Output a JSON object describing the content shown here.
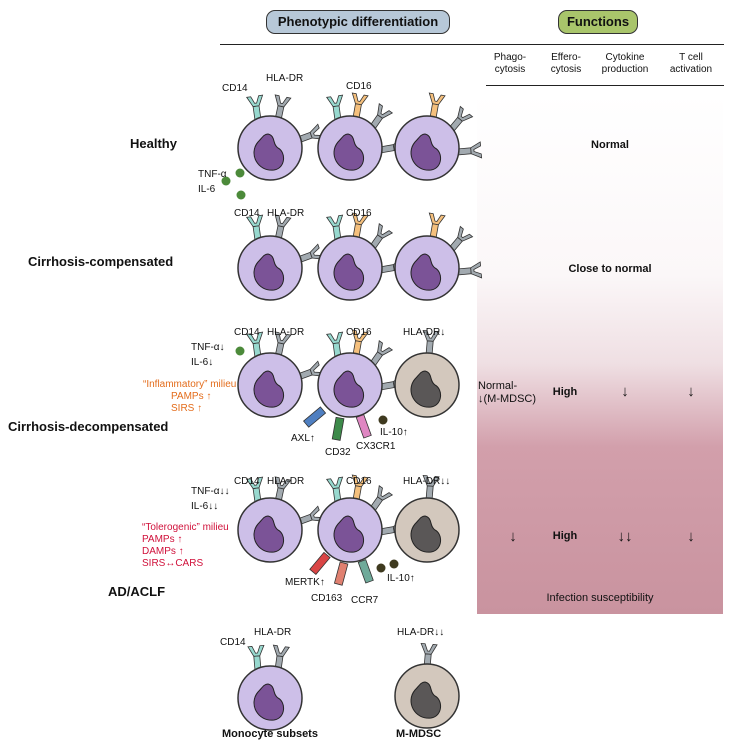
{
  "header": {
    "phenotypic_title": "Phenotypic differentiation",
    "functions_title": "Functions",
    "phenotypic_color": "#b7c8d8",
    "functions_color": "#a9c56b"
  },
  "columns": [
    {
      "line1": "Phago-",
      "line2": "cytosis"
    },
    {
      "line1": "Efferо-",
      "line2": "cytosis"
    },
    {
      "line1": "Cytokine",
      "line2": "production"
    },
    {
      "line1": "T cell",
      "line2": "activation"
    }
  ],
  "rows": {
    "healthy": {
      "label": "Healthy",
      "cd14": "CD14",
      "hladr": "HLA-DR",
      "cd16": "CD16",
      "tnf": "TNF-α",
      "il6": "IL-6",
      "function": "Normal"
    },
    "compensated": {
      "label": "Cirrhosis-compensated",
      "cd14": "CD14",
      "hladr": "HLA-DR",
      "cd16": "CD16",
      "function": "Close to normal"
    },
    "decompensated": {
      "label": "Cirrhosis-decompensated",
      "cd14": "CD14",
      "hladr": "HLA-DR",
      "cd16": "CD16",
      "hladr_down": "HLA-DR↓",
      "tnf": "TNF-α↓",
      "il6": "IL-6↓",
      "milieu1": "“Inflammatory” milieu",
      "milieu2": "PAMPs ↑",
      "milieu3": "SIRS ↑",
      "axl": "AXL↑",
      "cd32": "CD32",
      "cx3cr1": "CX3CR1",
      "il10": "IL-10↑",
      "phago1": "Normal-",
      "phago2": "↓(M-MDSC)",
      "effero": "High",
      "cytokine": "↓",
      "tcell": "↓"
    },
    "aclf": {
      "label": "AD/ACLF",
      "cd14": "CD14",
      "hladr": "HLA-DR",
      "cd16": "CD16",
      "hladr_down": "HLA-DR↓↓",
      "tnf": "TNF-α↓↓",
      "il6": "IL-6↓↓",
      "milieu1": "“Tolerogenic” milieu",
      "milieu2": "PAMPs ↑",
      "milieu3": "DAMPs ↑",
      "milieu4": "SIRS↔CARS",
      "mertk": "MERTK↑",
      "cd163": "CD163",
      "ccr7": "CCR7",
      "il10": "IL-10↑",
      "phago": "↓",
      "effero": "High",
      "cytokine": "↓↓",
      "tcell": "↓",
      "infection": "Infection susceptibility"
    }
  },
  "legend": {
    "cd14": "CD14",
    "hladr": "HLA-DR",
    "hladr_down": "HLA-DR↓↓",
    "monocyte": "Monocyte subsets",
    "mmdsc": "M-MDSC"
  },
  "colors": {
    "cell_fill": "#cdbfe8",
    "cell_stroke": "#333333",
    "nucleus": "#7b5397",
    "mdsc_fill": "#d3c8bd",
    "mdsc_nucleus": "#5a5757",
    "cd14_receptor": "#98d9cf",
    "hladr_receptor": "#a2aab0",
    "cd16_receptor": "#f5c07d",
    "cytokine_dot": "#4c8a3a",
    "il10_dot": "#3f3a1f",
    "axl": "#4f7fc1",
    "cd32": "#3d8a4a",
    "cx3cr1": "#df86c2",
    "mertk": "#d94545",
    "cd163": "#e08070",
    "ccr7": "#6faa9a",
    "panel_top": "#ffffff",
    "panel_bottom": "#c9939f",
    "orange_text": "#e36c1b",
    "red_text": "#d0103a"
  }
}
